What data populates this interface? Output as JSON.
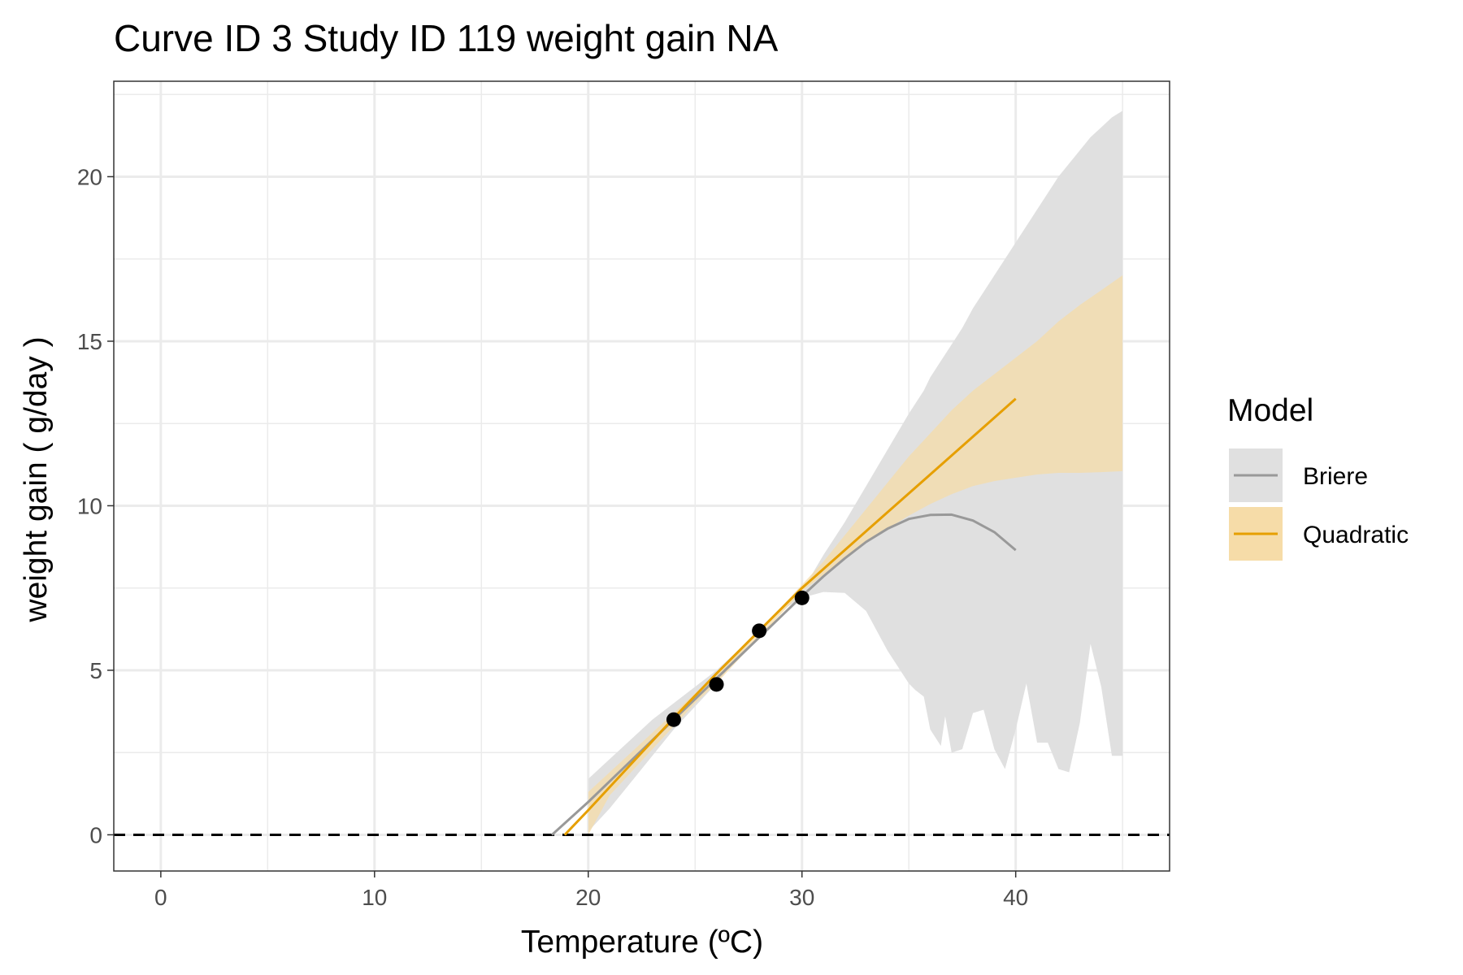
{
  "chart_data": {
    "type": "line",
    "title": "Curve ID 3 Study ID 119 weight gain NA",
    "xlabel": "Temperature (ºC)",
    "ylabel": "weight gain ( g/day )",
    "xlim": [
      -2.2,
      47.2
    ],
    "ylim": [
      -1.1,
      22.9
    ],
    "x_ticks": [
      0,
      10,
      20,
      30,
      40
    ],
    "x_tick_labels": [
      "0",
      "10",
      "20",
      "30",
      "40"
    ],
    "y_ticks": [
      0,
      5,
      10,
      15,
      20
    ],
    "y_tick_labels": [
      "0",
      "5",
      "10",
      "15",
      "20"
    ],
    "grid": true,
    "reference_line": {
      "y": 0,
      "style": "dashed"
    },
    "legend": {
      "title": "Model",
      "position": "right",
      "entries": [
        {
          "label": "Briere",
          "line_color": "#999999",
          "fill_color": "#e0e0e0"
        },
        {
          "label": "Quadratic",
          "line_color": "#E69F00",
          "fill_color": "#f6dca8"
        }
      ]
    },
    "points": {
      "x": [
        24,
        26,
        28,
        30
      ],
      "y": [
        3.5,
        4.57,
        6.2,
        7.2
      ]
    },
    "series": [
      {
        "name": "Briere",
        "color": "#999999",
        "band_color": "#e0e0e0",
        "x": [
          18.3,
          20,
          22,
          24,
          26,
          28,
          30,
          31,
          32,
          33,
          34,
          35,
          36,
          37,
          38,
          39,
          40
        ],
        "y": [
          0,
          1.0,
          2.25,
          3.5,
          4.75,
          6.0,
          7.25,
          7.85,
          8.4,
          8.9,
          9.3,
          9.6,
          9.72,
          9.73,
          9.55,
          9.2,
          8.65
        ],
        "band": {
          "x": [
            20,
            21,
            22,
            23,
            24,
            25,
            26,
            27,
            28,
            29,
            30,
            31,
            32,
            33,
            34,
            35,
            35.3,
            35.7,
            36,
            36.5,
            36.7,
            37,
            37.5,
            38,
            38.5,
            39,
            39.5,
            40,
            40.5,
            41,
            41.5,
            42,
            42.5,
            43,
            43.5,
            44,
            44.5,
            45
          ],
          "upper": [
            1.7,
            2.3,
            2.9,
            3.5,
            4.0,
            4.5,
            5.0,
            5.6,
            6.2,
            6.8,
            7.4,
            8.5,
            9.5,
            10.6,
            11.7,
            12.8,
            13.1,
            13.5,
            13.9,
            14.4,
            14.6,
            14.9,
            15.4,
            16.0,
            16.5,
            17.0,
            17.5,
            18.0,
            18.5,
            19.0,
            19.5,
            20.0,
            20.4,
            20.8,
            21.2,
            21.5,
            21.8,
            22.0
          ],
          "lower": [
            0.1,
            0.8,
            1.6,
            2.4,
            3.2,
            3.9,
            4.6,
            5.4,
            6.2,
            6.8,
            7.2,
            7.38,
            7.35,
            6.8,
            5.6,
            4.6,
            4.4,
            4.2,
            3.2,
            2.7,
            3.6,
            2.5,
            2.6,
            3.7,
            3.8,
            2.6,
            2.0,
            3.2,
            4.6,
            2.8,
            2.8,
            2.0,
            1.9,
            3.4,
            5.8,
            4.5,
            2.4,
            2.4
          ]
        }
      },
      {
        "name": "Quadratic",
        "color": "#E69F00",
        "band_color": "#f6dca8",
        "x": [
          18.9,
          20,
          22,
          24,
          26,
          28,
          30,
          32,
          34,
          36,
          38,
          40
        ],
        "y": [
          0,
          0.75,
          2.15,
          3.55,
          4.9,
          6.2,
          7.5,
          8.65,
          9.8,
          10.95,
          12.1,
          13.25
        ],
        "band": {
          "x": [
            20,
            21,
            22,
            23,
            24,
            25,
            26,
            27,
            28,
            29,
            30,
            31,
            32,
            33,
            34,
            35,
            36,
            37,
            38,
            39,
            40,
            41,
            42,
            43,
            44,
            45
          ],
          "upper": [
            1.3,
            1.9,
            2.5,
            3.1,
            3.7,
            4.3,
            4.9,
            5.5,
            6.2,
            6.9,
            7.6,
            8.3,
            9.1,
            9.9,
            10.7,
            11.5,
            12.2,
            12.9,
            13.5,
            14.0,
            14.5,
            15.0,
            15.6,
            16.1,
            16.55,
            17.0
          ],
          "lower": [
            0.0,
            1.2,
            1.9,
            2.6,
            3.3,
            4.0,
            4.6,
            5.3,
            6.0,
            6.7,
            7.4,
            7.9,
            8.4,
            8.9,
            9.3,
            9.7,
            10.05,
            10.35,
            10.6,
            10.75,
            10.85,
            10.95,
            11.0,
            11.0,
            11.02,
            11.05
          ]
        }
      }
    ]
  }
}
